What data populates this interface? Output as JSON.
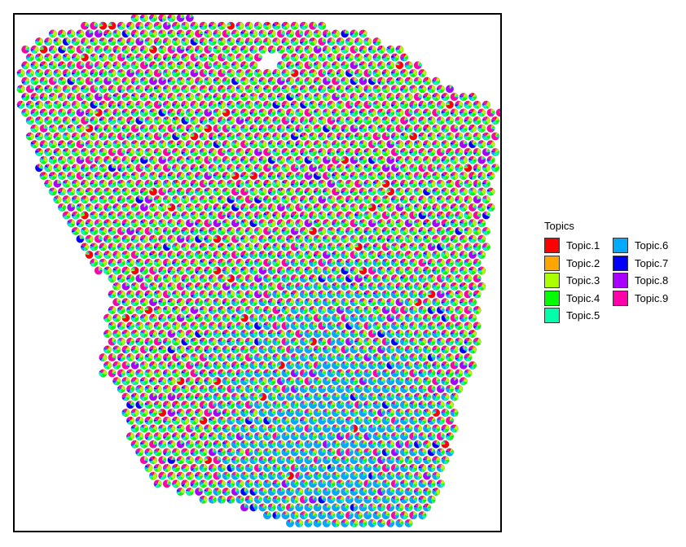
{
  "chart_data": {
    "type": "scatter",
    "subtype": "scatterpie",
    "title": "",
    "xlabel": "",
    "ylabel": "",
    "grid": false,
    "axes_visible": false,
    "legend": {
      "title": "Topics",
      "placement": "right",
      "columns": 2,
      "entries": [
        {
          "name": "Topic.1",
          "color": "#FF0000"
        },
        {
          "name": "Topic.2",
          "color": "#FFA500"
        },
        {
          "name": "Topic.3",
          "color": "#AAFF00"
        },
        {
          "name": "Topic.4",
          "color": "#00FF00"
        },
        {
          "name": "Topic.5",
          "color": "#00FFAA"
        },
        {
          "name": "Topic.6",
          "color": "#00AAFF"
        },
        {
          "name": "Topic.7",
          "color": "#0000FF"
        },
        {
          "name": "Topic.8",
          "color": "#AA00FF"
        },
        {
          "name": "Topic.9",
          "color": "#FF00AA"
        }
      ]
    },
    "pattern_notes": {
      "dominant_lower_center": "Topic.6",
      "dominant_upper_region": [
        "Topic.3",
        "Topic.4",
        "Topic.5",
        "Topic.9"
      ]
    }
  }
}
